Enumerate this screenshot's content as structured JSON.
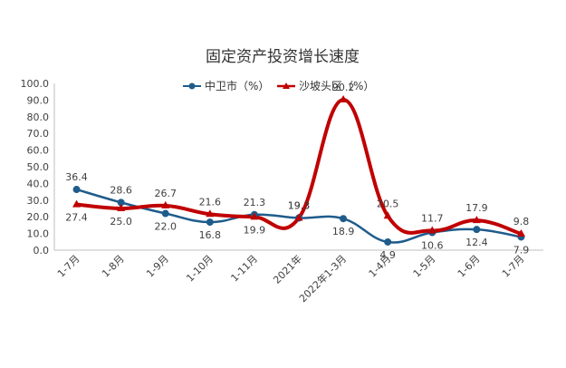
{
  "chart_data": {
    "type": "line",
    "title": "固定资产投资增长速度",
    "categories": [
      "1-7月",
      "1-8月",
      "1-9月",
      "1-10月",
      "1-11月",
      "2021年",
      "2022年1-3月",
      "1-4月",
      "1-5月",
      "1-6月",
      "1-7月"
    ],
    "yticks": [
      "0.0",
      "10.0",
      "20.0",
      "30.0",
      "40.0",
      "50.0",
      "60.0",
      "70.0",
      "80.0",
      "90.0",
      "100.0"
    ],
    "ylim": [
      0,
      100
    ],
    "legend_position": "top-center",
    "grid": false,
    "series": [
      {
        "name": "中卫市（%）",
        "color": "#1f5c8b",
        "marker": "circle",
        "values": [
          36.4,
          28.6,
          22.0,
          16.8,
          21.3,
          19.3,
          18.9,
          4.9,
          10.6,
          12.4,
          7.9
        ],
        "labels": [
          "36.4",
          "28.6",
          "22.0",
          "16.8",
          "21.3",
          "19.3",
          "18.9",
          "4.9",
          "10.6",
          "12.4",
          "7.9"
        ]
      },
      {
        "name": "沙坡头区（%）",
        "color": "#c00000",
        "marker": "triangle",
        "values": [
          27.4,
          25.0,
          26.7,
          21.6,
          19.9,
          19.3,
          90.2,
          20.5,
          11.7,
          17.9,
          9.8
        ],
        "labels": [
          "27.4",
          "25.0",
          "26.7",
          "21.6",
          "19.9",
          "19.3",
          "90.2",
          "20.5",
          "11.7",
          "17.9",
          "9.8"
        ]
      }
    ]
  }
}
